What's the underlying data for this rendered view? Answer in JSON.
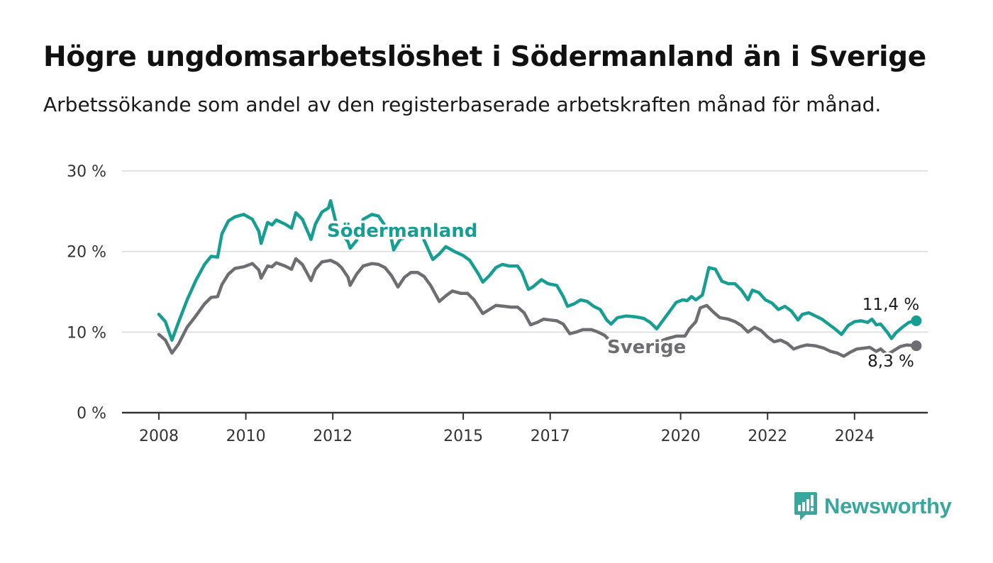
{
  "header": {
    "title": "Högre ungdomsarbetslöshet i Södermanland än i Sverige",
    "subtitle": "Arbetssökande som andel av den registerbaserade arbetskraften månad för månad."
  },
  "brand": {
    "name": "Newsworthy",
    "color": "#3aa79e",
    "icon": "newsworthy-logo-icon"
  },
  "chart_data": {
    "type": "line",
    "title": "Högre ungdomsarbetslöshet i Södermanland än i Sverige",
    "subtitle": "Arbetssökande som andel av den registerbaserade arbetskraften månad för månad.",
    "xlabel": "",
    "ylabel": "",
    "x_range": [
      2007.6,
      2026.1
    ],
    "ylim": [
      0,
      30
    ],
    "y_ticks": [
      0,
      10,
      20,
      30
    ],
    "y_tick_labels": [
      "0 %",
      "10 %",
      "20 %",
      "30 %"
    ],
    "x_ticks": [
      2008,
      2010,
      2012,
      2015,
      2017,
      2020,
      2022,
      2024
    ],
    "x_tick_labels": [
      "2008",
      "2010",
      "2012",
      "2015",
      "2017",
      "2020",
      "2022",
      "2024"
    ],
    "grid": true,
    "legend": "direct labels",
    "series": [
      {
        "name": "Södermanland",
        "color": "#169e93",
        "end_label": "11,4 %",
        "points": [
          [
            2008.0,
            12.2
          ],
          [
            2008.15,
            11.3
          ],
          [
            2008.3,
            9.0
          ],
          [
            2008.45,
            11.2
          ],
          [
            2008.65,
            14.0
          ],
          [
            2008.85,
            16.4
          ],
          [
            2009.05,
            18.4
          ],
          [
            2009.2,
            19.4
          ],
          [
            2009.35,
            19.3
          ],
          [
            2009.45,
            22.2
          ],
          [
            2009.6,
            23.8
          ],
          [
            2009.75,
            24.3
          ],
          [
            2009.95,
            24.6
          ],
          [
            2010.15,
            24.0
          ],
          [
            2010.3,
            22.5
          ],
          [
            2010.35,
            21.0
          ],
          [
            2010.5,
            23.6
          ],
          [
            2010.6,
            23.3
          ],
          [
            2010.7,
            23.9
          ],
          [
            2010.9,
            23.4
          ],
          [
            2011.05,
            22.9
          ],
          [
            2011.15,
            24.8
          ],
          [
            2011.3,
            24.0
          ],
          [
            2011.5,
            21.5
          ],
          [
            2011.6,
            23.4
          ],
          [
            2011.75,
            24.9
          ],
          [
            2011.9,
            25.4
          ],
          [
            2011.95,
            26.3
          ],
          [
            2012.1,
            23.0
          ],
          [
            2012.35,
            21.2
          ],
          [
            2012.4,
            20.4
          ],
          [
            2012.55,
            21.4
          ],
          [
            2012.7,
            24.0
          ],
          [
            2012.9,
            24.6
          ],
          [
            2013.05,
            24.4
          ],
          [
            2013.2,
            23.2
          ],
          [
            2013.35,
            21.5
          ],
          [
            2013.4,
            20.2
          ],
          [
            2013.55,
            21.5
          ],
          [
            2013.8,
            22.0
          ],
          [
            2014.05,
            22.0
          ],
          [
            2014.15,
            20.8
          ],
          [
            2014.3,
            19.0
          ],
          [
            2014.45,
            19.7
          ],
          [
            2014.6,
            20.6
          ],
          [
            2014.8,
            20.0
          ],
          [
            2015.0,
            19.5
          ],
          [
            2015.15,
            18.9
          ],
          [
            2015.35,
            17.2
          ],
          [
            2015.45,
            16.2
          ],
          [
            2015.6,
            17.0
          ],
          [
            2015.75,
            18.0
          ],
          [
            2015.9,
            18.4
          ],
          [
            2016.05,
            18.2
          ],
          [
            2016.25,
            18.2
          ],
          [
            2016.35,
            17.4
          ],
          [
            2016.5,
            15.3
          ],
          [
            2016.6,
            15.6
          ],
          [
            2016.8,
            16.5
          ],
          [
            2016.95,
            16.0
          ],
          [
            2017.15,
            15.8
          ],
          [
            2017.3,
            14.4
          ],
          [
            2017.4,
            13.2
          ],
          [
            2017.55,
            13.5
          ],
          [
            2017.7,
            14.0
          ],
          [
            2017.85,
            13.8
          ],
          [
            2018.0,
            13.2
          ],
          [
            2018.15,
            12.8
          ],
          [
            2018.3,
            11.5
          ],
          [
            2018.4,
            11.0
          ],
          [
            2018.55,
            11.8
          ],
          [
            2018.75,
            12.0
          ],
          [
            2018.95,
            11.9
          ],
          [
            2019.15,
            11.7
          ],
          [
            2019.3,
            11.2
          ],
          [
            2019.45,
            10.4
          ],
          [
            2019.6,
            11.5
          ],
          [
            2019.75,
            12.6
          ],
          [
            2019.9,
            13.7
          ],
          [
            2020.05,
            14.0
          ],
          [
            2020.15,
            13.9
          ],
          [
            2020.25,
            14.4
          ],
          [
            2020.35,
            14.0
          ],
          [
            2020.5,
            14.6
          ],
          [
            2020.65,
            18.0
          ],
          [
            2020.8,
            17.8
          ],
          [
            2020.95,
            16.3
          ],
          [
            2021.1,
            16.0
          ],
          [
            2021.25,
            16.0
          ],
          [
            2021.4,
            15.2
          ],
          [
            2021.55,
            14.0
          ],
          [
            2021.65,
            15.2
          ],
          [
            2021.8,
            14.9
          ],
          [
            2021.95,
            14.0
          ],
          [
            2022.1,
            13.6
          ],
          [
            2022.25,
            12.8
          ],
          [
            2022.4,
            13.2
          ],
          [
            2022.55,
            12.6
          ],
          [
            2022.7,
            11.5
          ],
          [
            2022.8,
            12.2
          ],
          [
            2022.95,
            12.4
          ],
          [
            2023.1,
            12.0
          ],
          [
            2023.25,
            11.6
          ],
          [
            2023.4,
            11.0
          ],
          [
            2023.55,
            10.4
          ],
          [
            2023.7,
            9.7
          ],
          [
            2023.85,
            10.8
          ],
          [
            2024.0,
            11.3
          ],
          [
            2024.15,
            11.4
          ],
          [
            2024.3,
            11.2
          ],
          [
            2024.4,
            11.6
          ],
          [
            2024.5,
            10.9
          ],
          [
            2024.6,
            11.0
          ],
          [
            2024.75,
            10.0
          ],
          [
            2024.85,
            9.2
          ],
          [
            2024.95,
            9.9
          ],
          [
            2025.1,
            10.6
          ],
          [
            2025.25,
            11.2
          ],
          [
            2025.42,
            11.4
          ]
        ]
      },
      {
        "name": "Sverige",
        "color": "#6e6d72",
        "end_label": "8,3 %",
        "points": [
          [
            2008.0,
            9.7
          ],
          [
            2008.15,
            9.0
          ],
          [
            2008.3,
            7.4
          ],
          [
            2008.45,
            8.5
          ],
          [
            2008.65,
            10.6
          ],
          [
            2008.85,
            12.0
          ],
          [
            2009.05,
            13.5
          ],
          [
            2009.2,
            14.3
          ],
          [
            2009.35,
            14.4
          ],
          [
            2009.45,
            15.9
          ],
          [
            2009.6,
            17.2
          ],
          [
            2009.75,
            17.9
          ],
          [
            2009.95,
            18.1
          ],
          [
            2010.15,
            18.5
          ],
          [
            2010.3,
            17.7
          ],
          [
            2010.35,
            16.7
          ],
          [
            2010.5,
            18.2
          ],
          [
            2010.6,
            18.1
          ],
          [
            2010.7,
            18.6
          ],
          [
            2010.9,
            18.2
          ],
          [
            2011.05,
            17.8
          ],
          [
            2011.15,
            19.1
          ],
          [
            2011.3,
            18.4
          ],
          [
            2011.5,
            16.4
          ],
          [
            2011.6,
            17.8
          ],
          [
            2011.75,
            18.7
          ],
          [
            2011.95,
            18.9
          ],
          [
            2012.1,
            18.5
          ],
          [
            2012.2,
            18.0
          ],
          [
            2012.35,
            16.8
          ],
          [
            2012.4,
            15.8
          ],
          [
            2012.55,
            17.2
          ],
          [
            2012.7,
            18.2
          ],
          [
            2012.9,
            18.5
          ],
          [
            2013.05,
            18.4
          ],
          [
            2013.2,
            18.0
          ],
          [
            2013.35,
            17.0
          ],
          [
            2013.5,
            15.6
          ],
          [
            2013.65,
            16.8
          ],
          [
            2013.8,
            17.4
          ],
          [
            2013.95,
            17.4
          ],
          [
            2014.1,
            16.9
          ],
          [
            2014.25,
            15.8
          ],
          [
            2014.45,
            13.8
          ],
          [
            2014.6,
            14.5
          ],
          [
            2014.75,
            15.1
          ],
          [
            2014.95,
            14.8
          ],
          [
            2015.1,
            14.8
          ],
          [
            2015.25,
            14.0
          ],
          [
            2015.45,
            12.3
          ],
          [
            2015.6,
            12.8
          ],
          [
            2015.75,
            13.3
          ],
          [
            2015.95,
            13.2
          ],
          [
            2016.1,
            13.1
          ],
          [
            2016.25,
            13.1
          ],
          [
            2016.4,
            12.4
          ],
          [
            2016.55,
            10.9
          ],
          [
            2016.7,
            11.2
          ],
          [
            2016.85,
            11.6
          ],
          [
            2017.0,
            11.5
          ],
          [
            2017.15,
            11.4
          ],
          [
            2017.3,
            11.0
          ],
          [
            2017.45,
            9.8
          ],
          [
            2017.6,
            10.0
          ],
          [
            2017.75,
            10.3
          ],
          [
            2017.95,
            10.3
          ],
          [
            2018.1,
            10.0
          ],
          [
            2018.25,
            9.6
          ],
          [
            2018.4,
            8.8
          ],
          [
            2018.55,
            8.3
          ],
          [
            2019.45,
            8.7
          ],
          [
            2019.7,
            9.2
          ],
          [
            2019.9,
            9.5
          ],
          [
            2020.1,
            9.5
          ],
          [
            2020.2,
            10.4
          ],
          [
            2020.35,
            11.3
          ],
          [
            2020.45,
            13.0
          ],
          [
            2020.6,
            13.3
          ],
          [
            2020.75,
            12.5
          ],
          [
            2020.9,
            11.8
          ],
          [
            2021.1,
            11.6
          ],
          [
            2021.25,
            11.3
          ],
          [
            2021.4,
            10.8
          ],
          [
            2021.55,
            10.0
          ],
          [
            2021.7,
            10.6
          ],
          [
            2021.85,
            10.2
          ],
          [
            2022.0,
            9.4
          ],
          [
            2022.15,
            8.8
          ],
          [
            2022.3,
            9.0
          ],
          [
            2022.45,
            8.6
          ],
          [
            2022.6,
            7.9
          ],
          [
            2022.75,
            8.2
          ],
          [
            2022.9,
            8.4
          ],
          [
            2023.1,
            8.3
          ],
          [
            2023.3,
            8.0
          ],
          [
            2023.45,
            7.6
          ],
          [
            2023.6,
            7.4
          ],
          [
            2023.75,
            7.0
          ],
          [
            2023.9,
            7.5
          ],
          [
            2024.05,
            7.9
          ],
          [
            2024.2,
            8.0
          ],
          [
            2024.35,
            8.1
          ],
          [
            2024.5,
            7.6
          ],
          [
            2024.6,
            7.9
          ],
          [
            2024.75,
            7.2
          ],
          [
            2024.9,
            7.7
          ],
          [
            2025.05,
            8.2
          ],
          [
            2025.2,
            8.4
          ],
          [
            2025.42,
            8.3
          ]
        ]
      }
    ]
  }
}
